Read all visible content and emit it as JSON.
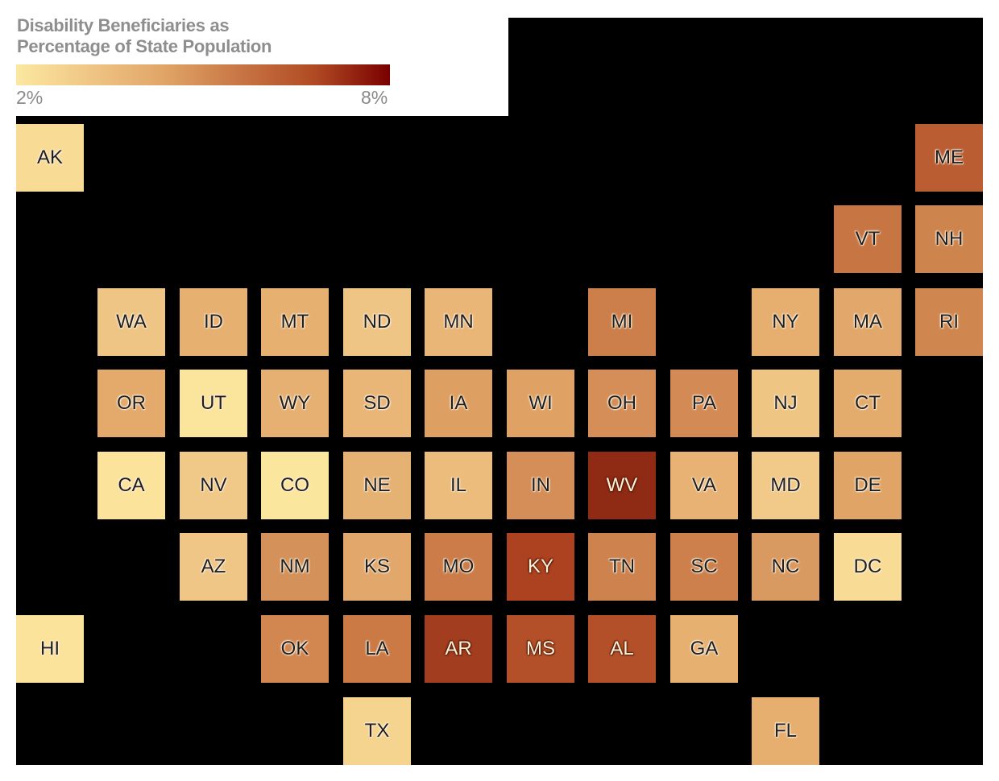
{
  "legend": {
    "title_line1": "Disability Beneficiaries as",
    "title_line2": "Percentage of State Population",
    "min_label": "2%",
    "max_label": "8%",
    "gradient": [
      "#fbe8a0",
      "#efc585",
      "#e0a466",
      "#c87544",
      "#b04a24",
      "#7a0000"
    ]
  },
  "colors": {
    "background": "#000000",
    "legend_text": "#8a8a8a"
  },
  "chart_data": {
    "type": "heatmap",
    "title": "Disability Beneficiaries as Percentage of State Population",
    "subtitle": "",
    "legend": {
      "min": "2%",
      "max": "8%",
      "scale": "sequential yellow to dark red"
    },
    "grid": {
      "columns": 12,
      "rows": 8
    },
    "tiles": [
      {
        "state": "AK",
        "col": 0,
        "row": 0,
        "color": "#f8dc96",
        "value_est": 2.5
      },
      {
        "state": "ME",
        "col": 11,
        "row": 0,
        "color": "#ba5d33",
        "value_est": 6.3
      },
      {
        "state": "VT",
        "col": 10,
        "row": 1,
        "color": "#c87544",
        "value_est": 5.6
      },
      {
        "state": "NH",
        "col": 11,
        "row": 1,
        "color": "#ce844d",
        "value_est": 5.2
      },
      {
        "state": "WA",
        "col": 1,
        "row": 2,
        "color": "#efc585",
        "value_est": 3.4
      },
      {
        "state": "ID",
        "col": 2,
        "row": 2,
        "color": "#e6b071",
        "value_est": 4.0
      },
      {
        "state": "MT",
        "col": 3,
        "row": 2,
        "color": "#e6b071",
        "value_est": 4.0
      },
      {
        "state": "ND",
        "col": 4,
        "row": 2,
        "color": "#efc585",
        "value_est": 3.4
      },
      {
        "state": "MN",
        "col": 5,
        "row": 2,
        "color": "#e9b677",
        "value_est": 3.8
      },
      {
        "state": "MI",
        "col": 7,
        "row": 2,
        "color": "#cc7f4a",
        "value_est": 5.3
      },
      {
        "state": "NY",
        "col": 9,
        "row": 2,
        "color": "#e6af70",
        "value_est": 4.0
      },
      {
        "state": "MA",
        "col": 10,
        "row": 2,
        "color": "#e2a76a",
        "value_est": 4.3
      },
      {
        "state": "RI",
        "col": 11,
        "row": 2,
        "color": "#d0874f",
        "value_est": 5.1
      },
      {
        "state": "OR",
        "col": 1,
        "row": 3,
        "color": "#e3aa6c",
        "value_est": 4.2
      },
      {
        "state": "UT",
        "col": 2,
        "row": 3,
        "color": "#fbe49c",
        "value_est": 2.3
      },
      {
        "state": "WY",
        "col": 3,
        "row": 3,
        "color": "#e6b073",
        "value_est": 4.0
      },
      {
        "state": "SD",
        "col": 4,
        "row": 3,
        "color": "#e9b677",
        "value_est": 3.8
      },
      {
        "state": "IA",
        "col": 5,
        "row": 3,
        "color": "#dea062",
        "value_est": 4.5
      },
      {
        "state": "WI",
        "col": 6,
        "row": 3,
        "color": "#dfa264",
        "value_est": 4.4
      },
      {
        "state": "OH",
        "col": 7,
        "row": 3,
        "color": "#d58e57",
        "value_est": 4.9
      },
      {
        "state": "PA",
        "col": 8,
        "row": 3,
        "color": "#d48a55",
        "value_est": 5.0
      },
      {
        "state": "NJ",
        "col": 9,
        "row": 3,
        "color": "#eec583",
        "value_est": 3.4
      },
      {
        "state": "CT",
        "col": 10,
        "row": 3,
        "color": "#e4ac6c",
        "value_est": 4.1
      },
      {
        "state": "CA",
        "col": 1,
        "row": 4,
        "color": "#fbe39c",
        "value_est": 2.4
      },
      {
        "state": "NV",
        "col": 2,
        "row": 4,
        "color": "#f0c988",
        "value_est": 3.3
      },
      {
        "state": "CO",
        "col": 3,
        "row": 4,
        "color": "#fbe69d",
        "value_est": 2.3
      },
      {
        "state": "NE",
        "col": 4,
        "row": 4,
        "color": "#e6b274",
        "value_est": 3.9
      },
      {
        "state": "IL",
        "col": 5,
        "row": 4,
        "color": "#ebbc7c",
        "value_est": 3.7
      },
      {
        "state": "IN",
        "col": 6,
        "row": 4,
        "color": "#d58e57",
        "value_est": 4.9
      },
      {
        "state": "WV",
        "col": 7,
        "row": 4,
        "color": "#8f2a15",
        "value_est": 7.6,
        "light_label": true
      },
      {
        "state": "VA",
        "col": 8,
        "row": 4,
        "color": "#e8b274",
        "value_est": 3.9
      },
      {
        "state": "MD",
        "col": 9,
        "row": 4,
        "color": "#f1c988",
        "value_est": 3.3
      },
      {
        "state": "DE",
        "col": 10,
        "row": 4,
        "color": "#e0a466",
        "value_est": 4.4
      },
      {
        "state": "AZ",
        "col": 2,
        "row": 5,
        "color": "#efc685",
        "value_est": 3.4
      },
      {
        "state": "NM",
        "col": 3,
        "row": 5,
        "color": "#d4925a",
        "value_est": 4.8
      },
      {
        "state": "KS",
        "col": 4,
        "row": 5,
        "color": "#e2a76b",
        "value_est": 4.3
      },
      {
        "state": "MO",
        "col": 5,
        "row": 5,
        "color": "#cb7c48",
        "value_est": 5.4
      },
      {
        "state": "KY",
        "col": 6,
        "row": 5,
        "color": "#ac4220",
        "value_est": 6.9,
        "light_label": true
      },
      {
        "state": "TN",
        "col": 7,
        "row": 5,
        "color": "#ce824e",
        "value_est": 5.3
      },
      {
        "state": "SC",
        "col": 8,
        "row": 5,
        "color": "#cd804c",
        "value_est": 5.3
      },
      {
        "state": "NC",
        "col": 9,
        "row": 5,
        "color": "#d99a61",
        "value_est": 4.7
      },
      {
        "state": "DC",
        "col": 10,
        "row": 5,
        "color": "#f8dc96",
        "value_est": 2.6
      },
      {
        "state": "HI",
        "col": 0,
        "row": 6,
        "color": "#fbe39b",
        "value_est": 2.4
      },
      {
        "state": "OK",
        "col": 3,
        "row": 6,
        "color": "#d28650",
        "value_est": 5.1
      },
      {
        "state": "LA",
        "col": 4,
        "row": 6,
        "color": "#cb7a46",
        "value_est": 5.4
      },
      {
        "state": "AR",
        "col": 5,
        "row": 6,
        "color": "#a23e1f",
        "value_est": 7.1,
        "light_label": true
      },
      {
        "state": "MS",
        "col": 6,
        "row": 6,
        "color": "#b45029",
        "value_est": 6.6,
        "light_label": true
      },
      {
        "state": "AL",
        "col": 7,
        "row": 6,
        "color": "#b45029",
        "value_est": 6.6,
        "light_label": true
      },
      {
        "state": "GA",
        "col": 8,
        "row": 6,
        "color": "#e6b071",
        "value_est": 4.0
      },
      {
        "state": "TX",
        "col": 4,
        "row": 7,
        "color": "#f4d48e",
        "value_est": 2.8
      },
      {
        "state": "FL",
        "col": 9,
        "row": 7,
        "color": "#e6ae6f",
        "value_est": 4.0
      }
    ]
  }
}
